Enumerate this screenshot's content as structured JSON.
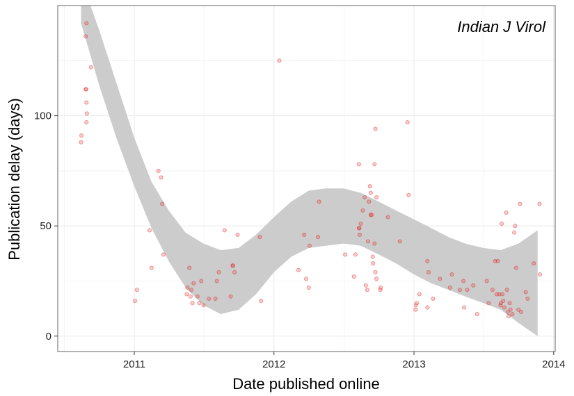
{
  "chart_data": {
    "type": "scatter",
    "annotation": "Indian J Virol",
    "xlabel": "Date published online",
    "ylabel": "Publication delay (days)",
    "x_ticks": [
      "2011",
      "2012",
      "2013",
      "2014"
    ],
    "y_ticks": [
      0,
      50,
      100
    ],
    "xlim": [
      "2010-06-15",
      "2014-01-05"
    ],
    "ylim": [
      -7,
      150
    ],
    "grid": true,
    "colors": {
      "points": "#e41a1c",
      "band": "#cccccc",
      "frame": "#7f7f7f",
      "grid": "#ebebeb"
    },
    "points": [
      {
        "x": "2010-08-15",
        "y": 88
      },
      {
        "x": "2010-08-16",
        "y": 91
      },
      {
        "x": "2010-08-27",
        "y": 136
      },
      {
        "x": "2010-08-29",
        "y": 142
      },
      {
        "x": "2010-08-27",
        "y": 112
      },
      {
        "x": "2010-08-28",
        "y": 112
      },
      {
        "x": "2010-08-29",
        "y": 106
      },
      {
        "x": "2010-08-30",
        "y": 101
      },
      {
        "x": "2010-08-29",
        "y": 97
      },
      {
        "x": "2010-09-10",
        "y": 122
      },
      {
        "x": "2011-01-03",
        "y": 16
      },
      {
        "x": "2011-01-08",
        "y": 21
      },
      {
        "x": "2011-02-10",
        "y": 48
      },
      {
        "x": "2011-02-15",
        "y": 31
      },
      {
        "x": "2011-03-05",
        "y": 75
      },
      {
        "x": "2011-03-12",
        "y": 72
      },
      {
        "x": "2011-03-15",
        "y": 60
      },
      {
        "x": "2011-03-18",
        "y": 37
      },
      {
        "x": "2011-05-18",
        "y": 19
      },
      {
        "x": "2011-05-20",
        "y": 22
      },
      {
        "x": "2011-05-25",
        "y": 31
      },
      {
        "x": "2011-05-28",
        "y": 18
      },
      {
        "x": "2011-05-30",
        "y": 21
      },
      {
        "x": "2011-06-02",
        "y": 15
      },
      {
        "x": "2011-06-05",
        "y": 24
      },
      {
        "x": "2011-06-15",
        "y": 18
      },
      {
        "x": "2011-06-20",
        "y": 15
      },
      {
        "x": "2011-06-25",
        "y": 25
      },
      {
        "x": "2011-07-01",
        "y": 14
      },
      {
        "x": "2011-07-15",
        "y": 17
      },
      {
        "x": "2011-08-01",
        "y": 17
      },
      {
        "x": "2011-08-05",
        "y": 25
      },
      {
        "x": "2011-08-10",
        "y": 29
      },
      {
        "x": "2011-08-25",
        "y": 48
      },
      {
        "x": "2011-09-10",
        "y": 18
      },
      {
        "x": "2011-09-15",
        "y": 32
      },
      {
        "x": "2011-09-16",
        "y": 32
      },
      {
        "x": "2011-09-20",
        "y": 29
      },
      {
        "x": "2011-09-28",
        "y": 46
      },
      {
        "x": "2011-11-25",
        "y": 45
      },
      {
        "x": "2011-11-28",
        "y": 16
      },
      {
        "x": "2012-01-15",
        "y": 125
      },
      {
        "x": "2012-03-05",
        "y": 30
      },
      {
        "x": "2012-03-20",
        "y": 46
      },
      {
        "x": "2012-03-25",
        "y": 26
      },
      {
        "x": "2012-04-01",
        "y": 22
      },
      {
        "x": "2012-04-03",
        "y": 41
      },
      {
        "x": "2012-04-25",
        "y": 45
      },
      {
        "x": "2012-04-28",
        "y": 61
      },
      {
        "x": "2012-07-05",
        "y": 37
      },
      {
        "x": "2012-07-28",
        "y": 27
      },
      {
        "x": "2012-08-01",
        "y": 37
      },
      {
        "x": "2012-08-10",
        "y": 49
      },
      {
        "x": "2012-08-11",
        "y": 49
      },
      {
        "x": "2012-08-12",
        "y": 46
      },
      {
        "x": "2012-08-15",
        "y": 51
      },
      {
        "x": "2012-08-10",
        "y": 78
      },
      {
        "x": "2012-08-20",
        "y": 57
      },
      {
        "x": "2012-08-25",
        "y": 63
      },
      {
        "x": "2012-08-28",
        "y": 23
      },
      {
        "x": "2012-09-01",
        "y": 21
      },
      {
        "x": "2012-09-03",
        "y": 43
      },
      {
        "x": "2012-09-05",
        "y": 61
      },
      {
        "x": "2012-09-08",
        "y": 68
      },
      {
        "x": "2012-09-10",
        "y": 65
      },
      {
        "x": "2012-09-10",
        "y": 55
      },
      {
        "x": "2012-09-12",
        "y": 55
      },
      {
        "x": "2012-09-15",
        "y": 36
      },
      {
        "x": "2012-09-16",
        "y": 33
      },
      {
        "x": "2012-09-20",
        "y": 78
      },
      {
        "x": "2012-09-22",
        "y": 94
      },
      {
        "x": "2012-09-20",
        "y": 42
      },
      {
        "x": "2012-09-22",
        "y": 29
      },
      {
        "x": "2012-09-25",
        "y": 26
      },
      {
        "x": "2012-09-25",
        "y": 63
      },
      {
        "x": "2012-10-05",
        "y": 21
      },
      {
        "x": "2012-10-06",
        "y": 22
      },
      {
        "x": "2012-10-25",
        "y": 54
      },
      {
        "x": "2012-11-25",
        "y": 43
      },
      {
        "x": "2012-12-15",
        "y": 97
      },
      {
        "x": "2012-12-18",
        "y": 64
      },
      {
        "x": "2013-01-05",
        "y": 12
      },
      {
        "x": "2013-01-06",
        "y": 14
      },
      {
        "x": "2013-01-08",
        "y": 15
      },
      {
        "x": "2013-01-15",
        "y": 19
      },
      {
        "x": "2013-02-05",
        "y": 13
      },
      {
        "x": "2013-02-05",
        "y": 34
      },
      {
        "x": "2013-02-08",
        "y": 29
      },
      {
        "x": "2013-02-20",
        "y": 17
      },
      {
        "x": "2013-03-10",
        "y": 26
      },
      {
        "x": "2013-04-05",
        "y": 22
      },
      {
        "x": "2013-04-10",
        "y": 28
      },
      {
        "x": "2013-05-01",
        "y": 21
      },
      {
        "x": "2013-05-10",
        "y": 25
      },
      {
        "x": "2013-05-12",
        "y": 13
      },
      {
        "x": "2013-05-20",
        "y": 21
      },
      {
        "x": "2013-06-05",
        "y": 23
      },
      {
        "x": "2013-06-15",
        "y": 10
      },
      {
        "x": "2013-07-10",
        "y": 25
      },
      {
        "x": "2013-07-15",
        "y": 15
      },
      {
        "x": "2013-07-25",
        "y": 21
      },
      {
        "x": "2013-08-01",
        "y": 34
      },
      {
        "x": "2013-08-05",
        "y": 19
      },
      {
        "x": "2013-08-08",
        "y": 34
      },
      {
        "x": "2013-08-12",
        "y": 19
      },
      {
        "x": "2013-08-15",
        "y": 14
      },
      {
        "x": "2013-08-16",
        "y": 15
      },
      {
        "x": "2013-08-18",
        "y": 51
      },
      {
        "x": "2013-08-20",
        "y": 19
      },
      {
        "x": "2013-08-22",
        "y": 16
      },
      {
        "x": "2013-08-25",
        "y": 13
      },
      {
        "x": "2013-08-30",
        "y": 56
      },
      {
        "x": "2013-09-01",
        "y": 21
      },
      {
        "x": "2013-09-03",
        "y": 11
      },
      {
        "x": "2013-09-05",
        "y": 9
      },
      {
        "x": "2013-09-08",
        "y": 15
      },
      {
        "x": "2013-09-10",
        "y": 12
      },
      {
        "x": "2013-09-15",
        "y": 10
      },
      {
        "x": "2013-09-20",
        "y": 47
      },
      {
        "x": "2013-09-22",
        "y": 50
      },
      {
        "x": "2013-09-25",
        "y": 31
      },
      {
        "x": "2013-10-01",
        "y": 12
      },
      {
        "x": "2013-10-05",
        "y": 60
      },
      {
        "x": "2013-10-08",
        "y": 11
      },
      {
        "x": "2013-10-20",
        "y": 20
      },
      {
        "x": "2013-10-25",
        "y": 17
      },
      {
        "x": "2013-11-10",
        "y": 33
      },
      {
        "x": "2013-11-25",
        "y": 60
      },
      {
        "x": "2013-11-26",
        "y": 28
      }
    ],
    "band": [
      {
        "x": "2010-08-15",
        "lo": 142,
        "hi": 162
      },
      {
        "x": "2010-10-01",
        "lo": 114,
        "hi": 139
      },
      {
        "x": "2010-11-15",
        "lo": 90,
        "hi": 115
      },
      {
        "x": "2011-01-01",
        "lo": 68,
        "hi": 90
      },
      {
        "x": "2011-02-15",
        "lo": 49,
        "hi": 70
      },
      {
        "x": "2011-04-01",
        "lo": 34,
        "hi": 57
      },
      {
        "x": "2011-05-15",
        "lo": 22,
        "hi": 47
      },
      {
        "x": "2011-07-01",
        "lo": 14,
        "hi": 42
      },
      {
        "x": "2011-08-15",
        "lo": 10,
        "hi": 39
      },
      {
        "x": "2011-10-01",
        "lo": 12,
        "hi": 40
      },
      {
        "x": "2011-11-15",
        "lo": 19,
        "hi": 46
      },
      {
        "x": "2012-01-01",
        "lo": 29,
        "hi": 54
      },
      {
        "x": "2012-02-15",
        "lo": 36,
        "hi": 61
      },
      {
        "x": "2012-04-01",
        "lo": 40,
        "hi": 66
      },
      {
        "x": "2012-05-15",
        "lo": 41,
        "hi": 67
      },
      {
        "x": "2012-07-01",
        "lo": 42,
        "hi": 67
      },
      {
        "x": "2012-08-15",
        "lo": 41,
        "hi": 65
      },
      {
        "x": "2012-10-01",
        "lo": 37,
        "hi": 61
      },
      {
        "x": "2012-11-15",
        "lo": 33,
        "hi": 57
      },
      {
        "x": "2013-01-01",
        "lo": 28,
        "hi": 53
      },
      {
        "x": "2013-02-15",
        "lo": 24,
        "hi": 49
      },
      {
        "x": "2013-04-01",
        "lo": 21,
        "hi": 45
      },
      {
        "x": "2013-05-15",
        "lo": 18,
        "hi": 42
      },
      {
        "x": "2013-07-01",
        "lo": 15,
        "hi": 40
      },
      {
        "x": "2013-08-15",
        "lo": 12,
        "hi": 39
      },
      {
        "x": "2013-10-01",
        "lo": 6,
        "hi": 42
      },
      {
        "x": "2013-11-20",
        "lo": 0,
        "hi": 48
      }
    ]
  }
}
